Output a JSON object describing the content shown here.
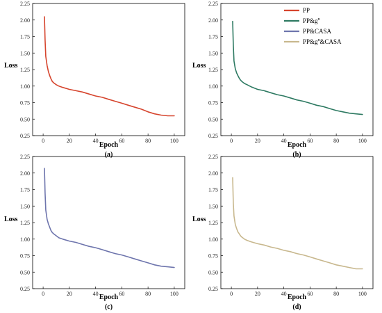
{
  "chart_data": [
    {
      "type": "line",
      "panel_label": "(a)",
      "xlabel": "Epoch",
      "ylabel": "Loss",
      "xlim": [
        -8,
        108
      ],
      "ylim": [
        0.25,
        2.25
      ],
      "xticks": [
        0,
        20,
        40,
        60,
        80,
        100
      ],
      "yticks": [
        0.25,
        0.5,
        0.75,
        1.0,
        1.25,
        1.5,
        1.75,
        2.0,
        2.25
      ],
      "grid": false,
      "series": [
        {
          "color": "#d6452e",
          "x": [
            1,
            1.5,
            2,
            3,
            4,
            5,
            6,
            7,
            8,
            10,
            12,
            15,
            20,
            25,
            30,
            35,
            40,
            45,
            50,
            55,
            60,
            65,
            70,
            75,
            80,
            85,
            90,
            95,
            100
          ],
          "y": [
            2.05,
            1.7,
            1.45,
            1.31,
            1.22,
            1.16,
            1.11,
            1.07,
            1.05,
            1.02,
            1.0,
            0.98,
            0.95,
            0.93,
            0.91,
            0.88,
            0.85,
            0.83,
            0.8,
            0.77,
            0.74,
            0.71,
            0.68,
            0.65,
            0.61,
            0.58,
            0.56,
            0.55,
            0.55
          ]
        }
      ]
    },
    {
      "type": "line",
      "panel_label": "(b)",
      "xlabel": "Epoch",
      "ylabel": "Loss",
      "xlim": [
        -8,
        108
      ],
      "ylim": [
        0.25,
        2.25
      ],
      "xticks": [
        0,
        20,
        40,
        60,
        80,
        100
      ],
      "yticks": [
        0.25,
        0.5,
        0.75,
        1.0,
        1.25,
        1.5,
        1.75,
        2.0,
        2.25
      ],
      "grid": false,
      "legend": {
        "position": "top-right",
        "entries": [
          {
            "label": "PP",
            "sup": "",
            "suffix": "",
            "color": "#d6452e"
          },
          {
            "label": "PP&g",
            "sup": "n",
            "suffix": "",
            "color": "#2e7a62"
          },
          {
            "label": "PP&CASA",
            "sup": "",
            "suffix": "",
            "color": "#6e75ad"
          },
          {
            "label": "PP&g",
            "sup": "n",
            "suffix": "&CASA",
            "color": "#c8b88e"
          }
        ]
      },
      "series": [
        {
          "color": "#2e7a62",
          "x": [
            1,
            1.5,
            2,
            3,
            4,
            5,
            6,
            7,
            8,
            10,
            12,
            15,
            20,
            25,
            30,
            35,
            40,
            45,
            50,
            55,
            60,
            65,
            70,
            75,
            80,
            85,
            90,
            95,
            100
          ],
          "y": [
            1.98,
            1.62,
            1.38,
            1.26,
            1.2,
            1.16,
            1.12,
            1.09,
            1.07,
            1.04,
            1.02,
            0.99,
            0.95,
            0.93,
            0.9,
            0.87,
            0.85,
            0.82,
            0.79,
            0.77,
            0.74,
            0.71,
            0.69,
            0.66,
            0.63,
            0.61,
            0.59,
            0.58,
            0.57
          ]
        }
      ]
    },
    {
      "type": "line",
      "panel_label": "(c)",
      "xlabel": "Epoch",
      "ylabel": "Loss",
      "xlim": [
        -8,
        108
      ],
      "ylim": [
        0.25,
        2.25
      ],
      "xticks": [
        0,
        20,
        40,
        60,
        80,
        100
      ],
      "yticks": [
        0.25,
        0.5,
        0.75,
        1.0,
        1.25,
        1.5,
        1.75,
        2.0,
        2.25
      ],
      "grid": false,
      "series": [
        {
          "color": "#6e75ad",
          "x": [
            1,
            1.5,
            2,
            3,
            4,
            5,
            6,
            7,
            8,
            10,
            12,
            15,
            20,
            25,
            30,
            35,
            40,
            45,
            50,
            55,
            60,
            65,
            70,
            75,
            80,
            85,
            90,
            95,
            100
          ],
          "y": [
            2.07,
            1.7,
            1.44,
            1.3,
            1.23,
            1.18,
            1.13,
            1.1,
            1.08,
            1.05,
            1.02,
            1.0,
            0.97,
            0.95,
            0.92,
            0.89,
            0.87,
            0.84,
            0.81,
            0.78,
            0.76,
            0.73,
            0.7,
            0.67,
            0.64,
            0.61,
            0.59,
            0.58,
            0.57
          ]
        }
      ]
    },
    {
      "type": "line",
      "panel_label": "(d)",
      "xlabel": "Epoch",
      "ylabel": "Loss",
      "xlim": [
        -8,
        108
      ],
      "ylim": [
        0.25,
        2.25
      ],
      "xticks": [
        0,
        20,
        40,
        60,
        80,
        100
      ],
      "yticks": [
        0.25,
        0.5,
        0.75,
        1.0,
        1.25,
        1.5,
        1.75,
        2.0,
        2.25
      ],
      "grid": false,
      "series": [
        {
          "color": "#c8b88e",
          "x": [
            1,
            1.5,
            2,
            3,
            4,
            5,
            6,
            7,
            8,
            10,
            12,
            15,
            20,
            25,
            30,
            35,
            40,
            45,
            50,
            55,
            60,
            65,
            70,
            75,
            80,
            85,
            90,
            95,
            100
          ],
          "y": [
            1.93,
            1.55,
            1.35,
            1.22,
            1.16,
            1.11,
            1.08,
            1.05,
            1.03,
            1.0,
            0.98,
            0.96,
            0.93,
            0.91,
            0.88,
            0.86,
            0.83,
            0.81,
            0.78,
            0.76,
            0.73,
            0.7,
            0.67,
            0.64,
            0.61,
            0.59,
            0.57,
            0.55,
            0.55
          ]
        }
      ]
    }
  ]
}
